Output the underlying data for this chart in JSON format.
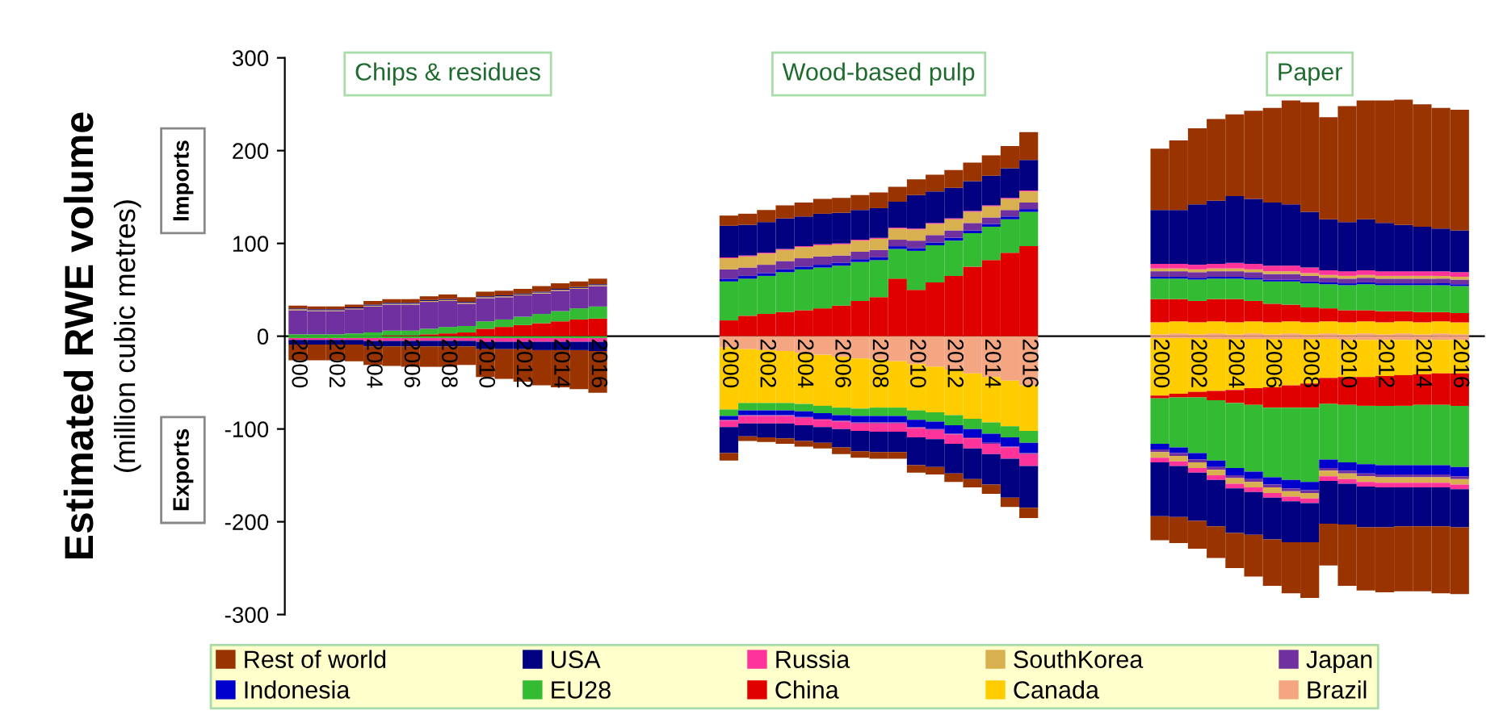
{
  "chart_data": {
    "type": "bar",
    "stacked": true,
    "ylabel": "Estimated RWE volume\n(million cubic metres)",
    "annotations": [
      "Chips & residues",
      "Wood-based pulp",
      "Paper",
      "Imports",
      "Exports"
    ],
    "categories": [
      "2000",
      null,
      "2002",
      null,
      "2004",
      null,
      "2006",
      null,
      "2008",
      null,
      "2010",
      null,
      "2012",
      null,
      "2014",
      null,
      "2016",
      null,
      null,
      null,
      null,
      null,
      null,
      "2000",
      null,
      "2002",
      null,
      "2004",
      null,
      "2006",
      null,
      "2008",
      null,
      "2010",
      null,
      "2012",
      null,
      "2014",
      null,
      "2016",
      null,
      null,
      null,
      null,
      null,
      null,
      "2000",
      null,
      "2002",
      null,
      "2004",
      null,
      "2006",
      null,
      "2008",
      null,
      "2010",
      null,
      "2012",
      null,
      "2014",
      null,
      "2016"
    ],
    "ylim": [
      -300,
      300
    ],
    "yticks": [
      -300,
      -200,
      -100,
      0,
      100,
      200,
      300
    ],
    "grid": false,
    "legend": "bottom",
    "series": [
      {
        "name": "Brazil",
        "color": "#f4a582",
        "values": [
          0,
          0,
          0,
          0,
          0,
          0,
          0,
          0,
          0,
          0,
          0,
          0,
          0,
          0,
          0,
          0,
          0,
          null,
          null,
          null,
          null,
          null,
          null,
          0,
          0,
          0,
          0,
          0,
          0,
          0,
          0,
          0,
          0,
          0,
          0,
          0,
          0,
          0,
          0,
          0,
          null,
          null,
          null,
          null,
          null,
          null,
          2,
          3,
          2,
          3,
          2,
          3,
          2,
          3,
          2,
          3,
          2,
          3,
          2,
          3,
          2,
          3,
          2
        ]
      },
      {
        "name": "Canada",
        "color": "#ffcc00",
        "values": [
          0,
          0,
          0,
          0,
          0,
          0,
          0,
          0,
          0,
          0,
          0,
          0,
          0,
          0,
          0,
          0,
          0,
          null,
          null,
          null,
          null,
          null,
          null,
          0,
          0,
          0,
          0,
          0,
          0,
          0,
          0,
          0,
          0,
          0,
          0,
          0,
          0,
          0,
          0,
          0,
          null,
          null,
          null,
          null,
          null,
          null,
          13,
          13,
          13,
          13,
          13,
          13,
          13,
          13,
          13,
          13,
          13,
          13,
          13,
          13,
          13,
          13,
          13
        ]
      },
      {
        "name": "China",
        "color": "#e00000",
        "values": [
          0,
          0,
          0,
          0,
          0,
          1,
          1,
          2,
          3,
          4,
          8,
          10,
          12,
          14,
          16,
          18,
          19,
          null,
          null,
          null,
          null,
          null,
          null,
          17,
          22,
          24,
          26,
          28,
          30,
          33,
          38,
          42,
          62,
          50,
          58,
          65,
          75,
          82,
          90,
          97,
          null,
          null,
          null,
          null,
          null,
          null,
          25,
          24,
          23,
          24,
          25,
          22,
          20,
          18,
          16,
          14,
          13,
          12,
          12,
          11,
          11,
          10,
          10
        ]
      },
      {
        "name": "EU28",
        "color": "#33bb33",
        "values": [
          2,
          2,
          2,
          3,
          4,
          5,
          5,
          6,
          7,
          7,
          8,
          8,
          9,
          10,
          11,
          12,
          13,
          null,
          null,
          null,
          null,
          null,
          null,
          42,
          40,
          41,
          43,
          44,
          44,
          43,
          42,
          40,
          32,
          42,
          40,
          38,
          36,
          36,
          36,
          37,
          null,
          null,
          null,
          null,
          null,
          null,
          22,
          22,
          23,
          22,
          22,
          23,
          24,
          25,
          26,
          26,
          27,
          28,
          28,
          28,
          29,
          29,
          29
        ]
      },
      {
        "name": "Indonesia",
        "color": "#0000cc",
        "values": [
          0,
          0,
          0,
          0,
          0,
          0,
          0,
          0,
          0,
          0,
          0,
          0,
          0,
          0,
          0,
          0,
          0,
          null,
          null,
          null,
          null,
          null,
          null,
          3,
          3,
          3,
          3,
          3,
          3,
          3,
          3,
          3,
          3,
          3,
          3,
          3,
          3,
          3,
          3,
          3,
          null,
          null,
          null,
          null,
          null,
          null,
          2,
          2,
          2,
          2,
          2,
          2,
          2,
          2,
          2,
          2,
          2,
          2,
          2,
          2,
          2,
          2,
          2
        ]
      },
      {
        "name": "Japan",
        "color": "#7030a0",
        "values": [
          26,
          25,
          25,
          26,
          28,
          28,
          28,
          29,
          28,
          24,
          25,
          24,
          23,
          22,
          22,
          21,
          22,
          null,
          null,
          null,
          null,
          null,
          null,
          10,
          9,
          9,
          9,
          9,
          9,
          8,
          8,
          8,
          7,
          8,
          8,
          8,
          8,
          7,
          7,
          7,
          null,
          null,
          null,
          null,
          null,
          null,
          6,
          6,
          6,
          6,
          6,
          6,
          6,
          6,
          6,
          5,
          5,
          5,
          5,
          5,
          5,
          5,
          5
        ]
      },
      {
        "name": "SouthKorea",
        "color": "#d8b050",
        "values": [
          1,
          1,
          1,
          1,
          1,
          1,
          1,
          1,
          1,
          1,
          1,
          1,
          1,
          1,
          1,
          1,
          1,
          null,
          null,
          null,
          null,
          null,
          null,
          12,
          12,
          12,
          12,
          12,
          12,
          12,
          12,
          12,
          12,
          12,
          12,
          12,
          12,
          12,
          12,
          12,
          null,
          null,
          null,
          null,
          null,
          null,
          3,
          3,
          3,
          3,
          3,
          3,
          3,
          3,
          3,
          3,
          3,
          3,
          3,
          3,
          3,
          3,
          3
        ]
      },
      {
        "name": "Russia",
        "color": "#ff3399",
        "values": [
          0,
          0,
          0,
          0,
          0,
          0,
          0,
          0,
          0,
          0,
          0,
          0,
          0,
          0,
          0,
          0,
          0,
          null,
          null,
          null,
          null,
          null,
          null,
          1,
          1,
          1,
          1,
          1,
          1,
          1,
          1,
          1,
          1,
          1,
          1,
          1,
          1,
          1,
          1,
          1,
          null,
          null,
          null,
          null,
          null,
          null,
          5,
          5,
          5,
          5,
          6,
          6,
          6,
          6,
          6,
          5,
          5,
          5,
          5,
          5,
          5,
          5,
          5
        ]
      },
      {
        "name": "USA",
        "color": "#000080",
        "values": [
          1,
          1,
          1,
          1,
          1,
          1,
          1,
          1,
          1,
          1,
          1,
          1,
          1,
          1,
          1,
          1,
          1,
          null,
          null,
          null,
          null,
          null,
          null,
          34,
          33,
          33,
          33,
          32,
          33,
          33,
          32,
          32,
          28,
          36,
          34,
          33,
          32,
          32,
          32,
          33,
          null,
          null,
          null,
          null,
          null,
          null,
          58,
          58,
          65,
          68,
          72,
          70,
          68,
          66,
          60,
          55,
          53,
          55,
          52,
          50,
          48,
          46,
          45
        ]
      },
      {
        "name": "Rest of world",
        "color": "#993300",
        "values": [
          3,
          3,
          3,
          3,
          4,
          4,
          4,
          4,
          5,
          5,
          5,
          5,
          5,
          6,
          6,
          6,
          6,
          null,
          null,
          null,
          null,
          null,
          null,
          11,
          12,
          13,
          14,
          15,
          16,
          16,
          16,
          17,
          16,
          17,
          18,
          19,
          20,
          22,
          24,
          30,
          null,
          null,
          null,
          null,
          null,
          null,
          66,
          75,
          82,
          88,
          88,
          95,
          102,
          112,
          118,
          110,
          125,
          128,
          132,
          135,
          132,
          130,
          130
        ]
      },
      {
        "color": "#f4a582",
        "values": [
          0,
          0,
          0,
          0,
          0,
          0,
          0,
          0,
          0,
          0,
          0,
          0,
          0,
          0,
          0,
          0,
          0,
          null,
          null,
          null,
          null,
          null,
          null,
          -12,
          -14,
          -15,
          -16,
          -18,
          -20,
          -22,
          -24,
          -25,
          -27,
          -30,
          -33,
          -36,
          -40,
          -44,
          -48,
          -53,
          null,
          null,
          null,
          null,
          null,
          null,
          -2,
          -2,
          -2,
          -3,
          -3,
          -3,
          -3,
          -3,
          -3,
          -3,
          -4,
          -4,
          -4,
          -4,
          -4,
          -4,
          -4
        ]
      },
      {
        "color": "#ffcc00",
        "values": [
          0,
          0,
          0,
          0,
          0,
          0,
          0,
          0,
          0,
          0,
          0,
          0,
          0,
          0,
          0,
          0,
          0,
          null,
          null,
          null,
          null,
          null,
          null,
          -67,
          -58,
          -57,
          -56,
          -55,
          -55,
          -55,
          -54,
          -52,
          -50,
          -50,
          -49,
          -49,
          -49,
          -49,
          -49,
          -49,
          null,
          null,
          null,
          null,
          null,
          null,
          -62,
          -60,
          -58,
          -56,
          -55,
          -53,
          -52,
          -50,
          -48,
          -42,
          -40,
          -40,
          -39,
          -38,
          -37,
          -36,
          -36
        ]
      },
      {
        "color": "#e00000",
        "values": [
          0,
          0,
          0,
          0,
          0,
          0,
          0,
          0,
          0,
          0,
          0,
          0,
          0,
          0,
          0,
          0,
          0,
          null,
          null,
          null,
          null,
          null,
          null,
          0,
          0,
          0,
          0,
          0,
          0,
          0,
          0,
          0,
          0,
          0,
          0,
          0,
          0,
          0,
          0,
          0,
          null,
          null,
          null,
          null,
          null,
          null,
          -3,
          -4,
          -6,
          -10,
          -14,
          -18,
          -22,
          -24,
          -26,
          -28,
          -30,
          -31,
          -32,
          -33,
          -33,
          -34,
          -35
        ]
      },
      {
        "color": "#33bb33",
        "values": [
          -2,
          -2,
          -2,
          -2,
          -2,
          -2,
          -2,
          -2,
          -2,
          -2,
          -2,
          -2,
          -2,
          -2,
          -2,
          -2,
          -2,
          null,
          null,
          null,
          null,
          null,
          null,
          -7,
          -8,
          -8,
          -8,
          -8,
          -8,
          -8,
          -8,
          -9,
          -9,
          -10,
          -10,
          -11,
          -11,
          -12,
          -12,
          -13,
          null,
          null,
          null,
          null,
          null,
          null,
          -49,
          -54,
          -60,
          -65,
          -70,
          -72,
          -75,
          -78,
          -80,
          -60,
          -62,
          -63,
          -64,
          -64,
          -65,
          -65,
          -66
        ]
      },
      {
        "color": "#0000cc",
        "values": [
          0,
          0,
          0,
          0,
          0,
          0,
          0,
          0,
          0,
          0,
          0,
          0,
          0,
          0,
          0,
          0,
          0,
          null,
          null,
          null,
          null,
          null,
          null,
          -4,
          -5,
          -5,
          -5,
          -6,
          -6,
          -6,
          -7,
          -7,
          -7,
          -8,
          -8,
          -9,
          -9,
          -10,
          -10,
          -11,
          null,
          null,
          null,
          null,
          null,
          null,
          -6,
          -6,
          -7,
          -7,
          -8,
          -8,
          -8,
          -9,
          -9,
          -9,
          -9,
          -10,
          -10,
          -10,
          -10,
          -10,
          -10
        ]
      },
      {
        "color": "#7030a0",
        "values": [
          0,
          0,
          0,
          0,
          0,
          0,
          0,
          0,
          0,
          0,
          0,
          0,
          0,
          0,
          0,
          0,
          0,
          null,
          null,
          null,
          null,
          null,
          null,
          -1,
          -1,
          -1,
          -1,
          -1,
          -1,
          -1,
          -1,
          -1,
          -1,
          -1,
          -1,
          -1,
          -1,
          -1,
          -1,
          -1,
          null,
          null,
          null,
          null,
          null,
          null,
          -3,
          -3,
          -3,
          -3,
          -3,
          -3,
          -3,
          -3,
          -3,
          -3,
          -3,
          -3,
          -3,
          -3,
          -3,
          -3,
          -3
        ]
      },
      {
        "color": "#d8b050",
        "values": [
          0,
          0,
          0,
          0,
          0,
          0,
          0,
          0,
          0,
          0,
          0,
          0,
          0,
          0,
          0,
          0,
          0,
          null,
          null,
          null,
          null,
          null,
          null,
          0,
          0,
          0,
          0,
          0,
          0,
          0,
          0,
          0,
          0,
          0,
          0,
          0,
          0,
          0,
          0,
          0,
          null,
          null,
          null,
          null,
          null,
          null,
          -6,
          -6,
          -6,
          -6,
          -6,
          -6,
          -6,
          -6,
          -6,
          -6,
          -6,
          -6,
          -6,
          -6,
          -6,
          -6,
          -6
        ]
      },
      {
        "color": "#ff3399",
        "values": [
          -2,
          -2,
          -2,
          -2,
          -3,
          -3,
          -3,
          -3,
          -3,
          -3,
          -4,
          -4,
          -4,
          -4,
          -4,
          -4,
          -4,
          null,
          null,
          null,
          null,
          null,
          null,
          -7,
          -8,
          -8,
          -8,
          -8,
          -8,
          -8,
          -8,
          -9,
          -9,
          -10,
          -10,
          -10,
          -11,
          -11,
          -12,
          -13,
          null,
          null,
          null,
          null,
          null,
          null,
          -5,
          -5,
          -5,
          -5,
          -5,
          -5,
          -5,
          -5,
          -5,
          -5,
          -5,
          -5,
          -5,
          -5,
          -5,
          -5,
          -5
        ]
      },
      {
        "color": "#000080",
        "values": [
          -5,
          -5,
          -5,
          -5,
          -6,
          -6,
          -6,
          -6,
          -6,
          -6,
          -8,
          -8,
          -8,
          -9,
          -9,
          -9,
          -10,
          null,
          null,
          null,
          null,
          null,
          null,
          -28,
          -14,
          -15,
          -16,
          -17,
          -17,
          -20,
          -22,
          -22,
          -22,
          -30,
          -30,
          -32,
          -33,
          -33,
          -42,
          -45,
          null,
          null,
          null,
          null,
          null,
          null,
          -58,
          -55,
          -52,
          -50,
          -48,
          -46,
          -45,
          -44,
          -42,
          -46,
          -44,
          -44,
          -43,
          -42,
          -42,
          -42,
          -41
        ]
      },
      {
        "color": "#993300",
        "values": [
          -17,
          -17,
          -17,
          -18,
          -20,
          -21,
          -22,
          -22,
          -22,
          -20,
          -30,
          -32,
          -35,
          -38,
          -40,
          -42,
          -45,
          null,
          null,
          null,
          null,
          null,
          null,
          -8,
          -5,
          -5,
          -6,
          -6,
          -6,
          -7,
          -7,
          -7,
          -7,
          -8,
          -8,
          -9,
          -9,
          -10,
          -10,
          -11,
          null,
          null,
          null,
          null,
          null,
          null,
          -26,
          -28,
          -30,
          -34,
          -38,
          -45,
          -50,
          -55,
          -60,
          -45,
          -66,
          -68,
          -70,
          -70,
          -70,
          -72,
          -72
        ]
      }
    ]
  }
}
